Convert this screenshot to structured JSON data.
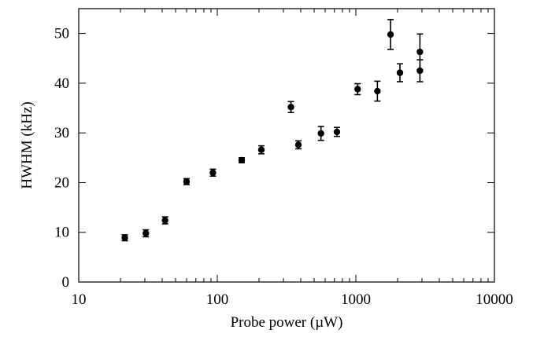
{
  "chart_data": {
    "type": "scatter",
    "title": "",
    "xlabel": "Probe power (µW)",
    "ylabel": "HWHM (kHz)",
    "xscale": "log",
    "xlim": [
      10,
      10000
    ],
    "ylim": [
      0,
      55
    ],
    "x_ticks": [
      10,
      100,
      1000,
      10000
    ],
    "x_tick_labels": [
      "10",
      "100",
      "1000",
      "10000"
    ],
    "y_ticks": [
      0,
      10,
      20,
      30,
      40,
      50
    ],
    "y_tick_labels": [
      "0",
      "10",
      "20",
      "30",
      "40",
      "50"
    ],
    "grid": false,
    "legend": "none",
    "marker_color": "#000000",
    "points": [
      {
        "x": 21.5,
        "y": 8.9,
        "err": 0.6
      },
      {
        "x": 30.5,
        "y": 9.8,
        "err": 0.7
      },
      {
        "x": 42,
        "y": 12.4,
        "err": 0.7
      },
      {
        "x": 60,
        "y": 20.2,
        "err": 0.6
      },
      {
        "x": 93,
        "y": 22.0,
        "err": 0.7
      },
      {
        "x": 150,
        "y": 24.5,
        "err": 0.5
      },
      {
        "x": 208,
        "y": 26.6,
        "err": 0.8
      },
      {
        "x": 340,
        "y": 35.2,
        "err": 1.1
      },
      {
        "x": 385,
        "y": 27.6,
        "err": 0.8
      },
      {
        "x": 560,
        "y": 29.9,
        "err": 1.4
      },
      {
        "x": 730,
        "y": 30.2,
        "err": 0.9
      },
      {
        "x": 1030,
        "y": 38.8,
        "err": 1.1
      },
      {
        "x": 1430,
        "y": 38.4,
        "err": 2.0
      },
      {
        "x": 1780,
        "y": 49.8,
        "err": 3.0
      },
      {
        "x": 2080,
        "y": 42.1,
        "err": 1.8
      },
      {
        "x": 2900,
        "y": 46.3,
        "err": 3.6
      },
      {
        "x": 2900,
        "y": 42.5,
        "err": 2.2
      }
    ]
  }
}
